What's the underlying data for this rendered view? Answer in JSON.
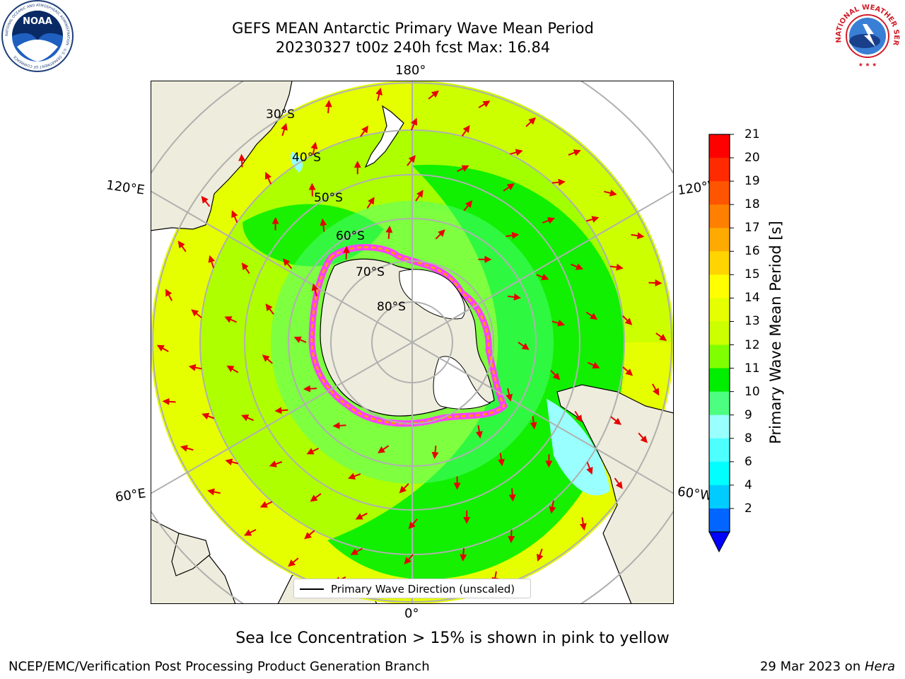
{
  "title": {
    "line1": "GEFS MEAN Antarctic Primary Wave Mean Period",
    "line2": "20230327 t00z 240h fcst   Max: 16.84"
  },
  "logos": {
    "noaa_text": "NOAA",
    "noaa_ring": "NATIONAL OCEANIC AND ATMOSPHERIC ADMINISTRATION · U.S. DEPARTMENT OF COMMERCE",
    "nws_ring": "NATIONAL WEATHER SERVICE"
  },
  "map": {
    "projection": "south-polar-stereographic",
    "longitude_labels": {
      "top": "180°",
      "bottom": "0°",
      "upper_left": "120°E",
      "upper_right": "120°W",
      "lower_left": "60°E",
      "lower_right": "60°W"
    },
    "latitude_labels": [
      "30°S",
      "40°S",
      "50°S",
      "60°S",
      "70°S",
      "80°S"
    ],
    "legend_text": "Primary Wave Direction (unscaled)",
    "colors": {
      "land": "#eeecdc",
      "ice_edge": [
        "#ff40ff",
        "#ff9900",
        "#ffff00"
      ],
      "arrow": "#e60000"
    }
  },
  "colorbar": {
    "label": "Primary Wave Mean Period [s]",
    "ticks": [
      "21",
      "20",
      "19",
      "18",
      "17",
      "16",
      "15",
      "14",
      "13",
      "12",
      "11",
      "10",
      "9",
      "8",
      "6",
      "4",
      "2"
    ],
    "colors_top_to_bottom": [
      "#ff0000",
      "#ff2a00",
      "#ff5500",
      "#ff8000",
      "#ffaa00",
      "#ffd400",
      "#ffff00",
      "#e6ff00",
      "#ccff00",
      "#80ff00",
      "#00ee00",
      "#4dff80",
      "#99ffff",
      "#4dffff",
      "#00ffff",
      "#00ccff",
      "#0066ff"
    ],
    "extend_color": "#0000ff"
  },
  "footnote": "Sea Ice Concentration > 15% is shown in pink to yellow",
  "credits": {
    "left": "NCEP/EMC/Verification Post Processing Product Generation Branch",
    "right_prefix": "29 Mar 2023 on ",
    "right_host": "Hera"
  }
}
